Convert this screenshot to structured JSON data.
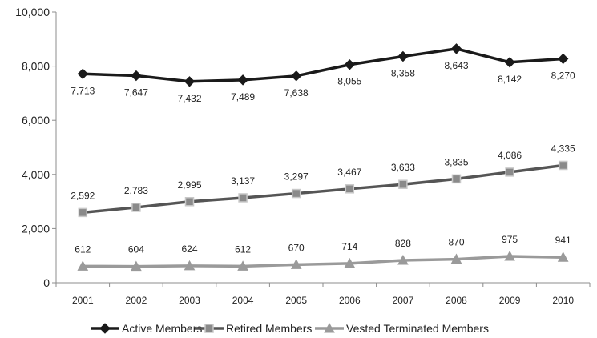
{
  "chart_data": {
    "type": "line",
    "title": "",
    "xlabel": "",
    "ylabel": "",
    "categories": [
      "2001",
      "2002",
      "2003",
      "2004",
      "2005",
      "2006",
      "2007",
      "2008",
      "2009",
      "2010"
    ],
    "ylim": [
      0,
      10000
    ],
    "yticks": [
      0,
      2000,
      4000,
      6000,
      8000,
      10000
    ],
    "ytick_labels": [
      "0",
      "2,000",
      "4,000",
      "6,000",
      "8,000",
      "10,000"
    ],
    "grid": false,
    "legend_position": "bottom",
    "series": [
      {
        "name": "Active Members",
        "values": [
          7713,
          7647,
          7432,
          7489,
          7638,
          8055,
          8358,
          8643,
          8142,
          8270
        ],
        "labels": [
          "7,713",
          "7,647",
          "7,432",
          "7,489",
          "7,638",
          "8,055",
          "8,358",
          "8,643",
          "8,142",
          "8,270"
        ],
        "label_position": "below",
        "marker": "diamond",
        "line_color": "#1a1a1a",
        "marker_fill": "#1a1a1a",
        "marker_stroke": "#1a1a1a"
      },
      {
        "name": "Retired Members",
        "values": [
          2592,
          2783,
          2995,
          3137,
          3297,
          3467,
          3633,
          3835,
          4086,
          4335
        ],
        "labels": [
          "2,592",
          "2,783",
          "2,995",
          "3,137",
          "3,297",
          "3,467",
          "3,633",
          "3,835",
          "4,086",
          "4,335"
        ],
        "label_position": "above",
        "marker": "square",
        "line_color": "#555555",
        "marker_fill": "#8a8a8a",
        "marker_stroke": "#c8c8c8"
      },
      {
        "name": "Vested Terminated Members",
        "values": [
          612,
          604,
          624,
          612,
          670,
          714,
          828,
          870,
          975,
          941
        ],
        "labels": [
          "612",
          "604",
          "624",
          "612",
          "670",
          "714",
          "828",
          "870",
          "975",
          "941"
        ],
        "label_position": "above",
        "marker": "triangle",
        "line_color": "#9a9a9a",
        "marker_fill": "#9a9a9a",
        "marker_stroke": "#9a9a9a"
      }
    ]
  }
}
